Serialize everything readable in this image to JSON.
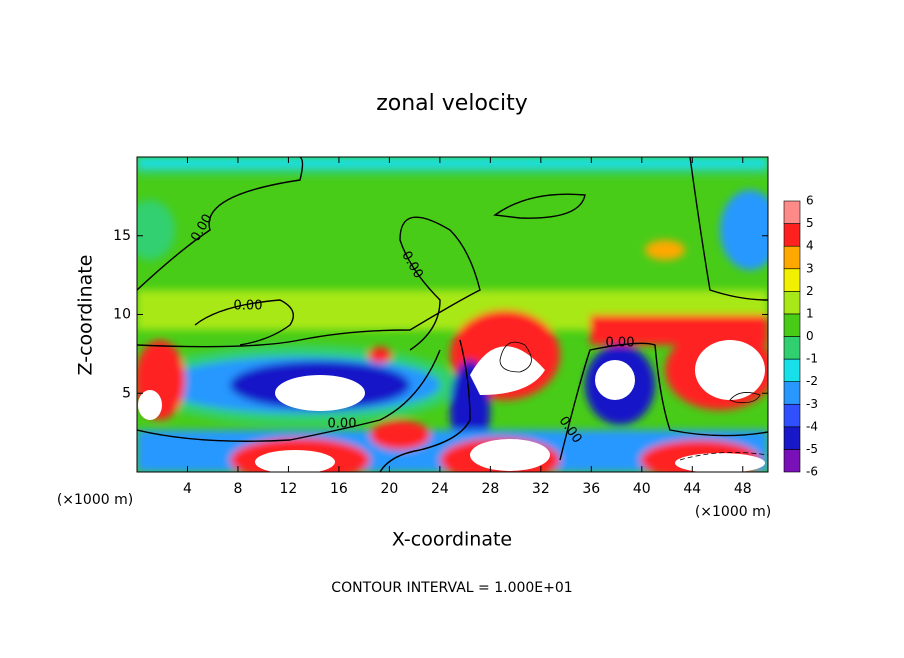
{
  "chart_data": {
    "type": "contour",
    "title": "zonal velocity",
    "x_label": "X-coordinate",
    "y_label": "Z-coordinate",
    "x_unit_label": "(×1000 m)",
    "y_unit_label": "(×1000 m)",
    "footnote": "CONTOUR INTERVAL = 1.000E+01",
    "xlim": [
      0,
      50
    ],
    "xticks": [
      4,
      8,
      12,
      16,
      20,
      24,
      28,
      32,
      36,
      40,
      44,
      48
    ],
    "ylim": [
      0,
      20
    ],
    "yticks": [
      5,
      10,
      15
    ],
    "contour_labels": [
      "0.00",
      "0.00",
      "0.00",
      "0.00",
      "0.00",
      "0.00"
    ],
    "colorbar": {
      "ticks": [
        -6,
        -5,
        -4,
        -3,
        -2,
        -1,
        0,
        1,
        2,
        3,
        4,
        5,
        6
      ],
      "colors": [
        "#7a10b8",
        "#1818c8",
        "#3050ff",
        "#2898ff",
        "#18e0e8",
        "#30d070",
        "#48cc18",
        "#a8e818",
        "#f0f000",
        "#ffa800",
        "#ff2020",
        "#ff8a8a"
      ]
    }
  }
}
